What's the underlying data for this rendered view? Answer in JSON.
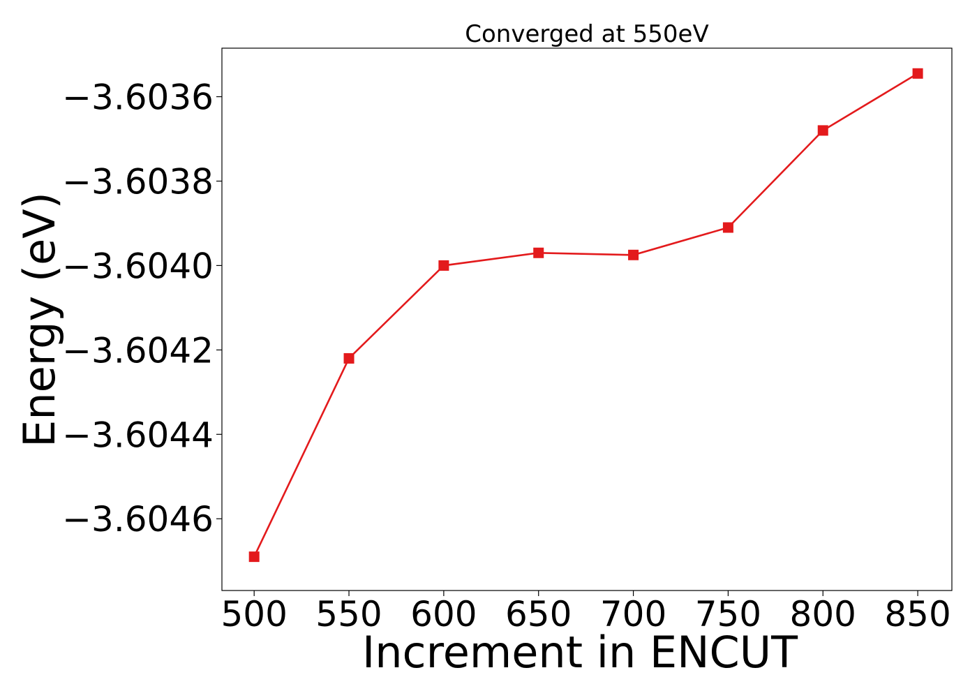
{
  "chart_data": {
    "type": "line",
    "title": "Converged at 550eV",
    "xlabel": "Increment in ENCUT",
    "ylabel": "Energy (eV)",
    "x": [
      500,
      550,
      600,
      650,
      700,
      750,
      800,
      850
    ],
    "series": [
      {
        "values": [
          -3.60469,
          -3.60422,
          -3.604,
          -3.60397,
          -3.603975,
          -3.60391,
          -3.60368,
          -3.603545
        ],
        "color": "#e31a1c",
        "marker": "square"
      }
    ],
    "xticks": [
      500,
      550,
      600,
      650,
      700,
      750,
      800,
      850
    ],
    "xtick_labels": [
      "500",
      "550",
      "600",
      "650",
      "700",
      "750",
      "800",
      "850"
    ],
    "yticks": [
      -3.6046,
      -3.6044,
      -3.6042,
      -3.604,
      -3.6038,
      -3.6036
    ],
    "ytick_labels": [
      "−3.6046",
      "−3.6044",
      "−3.6042",
      "−3.6040",
      "−3.6038",
      "−3.6036"
    ],
    "xlim": [
      483,
      868
    ],
    "ylim": [
      -3.60477,
      -3.603485
    ],
    "grid": false,
    "legend": "none"
  }
}
